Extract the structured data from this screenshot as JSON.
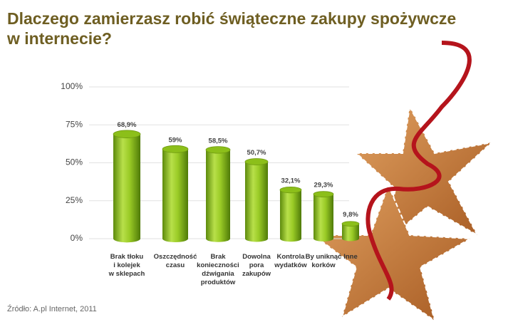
{
  "chart_data": {
    "type": "bar",
    "title": "Dlaczego zamierzasz robić świąteczne zakupy spożywcze\nw internecie?",
    "source": "Źródło: A.pl Internet, 2011",
    "categories": [
      "Brak tłoku\ni kolejek\nw sklepach",
      "Oszczędność\nczasu",
      "Brak\nkonieczności\ndźwigania\nproduktów",
      "Dowolna\npora\nzakupów",
      "Kontrola\nwydatków",
      "By uniknąć\nkorków",
      "Inne"
    ],
    "values": [
      68.9,
      59,
      58.5,
      50.7,
      32.1,
      29.3,
      9.8
    ],
    "value_labels": [
      "68,9%",
      "59%",
      "58,5%",
      "50,7%",
      "32,1%",
      "29,3%",
      "9,8%"
    ],
    "color": "#8cbf1a",
    "ylim": [
      0,
      100
    ],
    "yticks": [
      {
        "value": 0,
        "label": "0%"
      },
      {
        "value": 25,
        "label": "25%"
      },
      {
        "value": 50,
        "label": "50%"
      },
      {
        "value": 75,
        "label": "75%"
      },
      {
        "value": 100,
        "label": "100%"
      }
    ],
    "grid": true
  }
}
